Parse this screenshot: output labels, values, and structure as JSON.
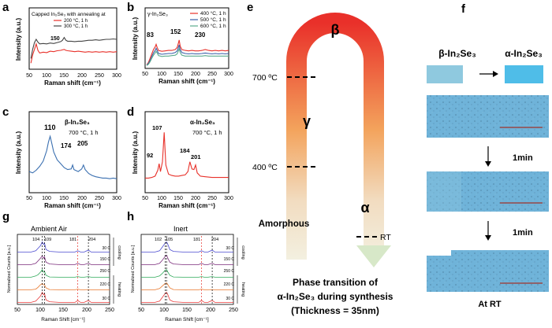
{
  "panels": {
    "a": {
      "letter": "a",
      "title": "Capped In₂Se₃ with annealing at",
      "ylabel": "Intensity (a.u.)",
      "xlabel": "Raman shift (cm⁻¹)",
      "ticks": [
        "50",
        "100",
        "150",
        "200",
        "250",
        "300"
      ],
      "peak": "150",
      "legend": [
        "200 °C, 1 h",
        "300 °C, 1 h"
      ],
      "colors": [
        "#e8312a",
        "#444444"
      ]
    },
    "b": {
      "letter": "b",
      "phase": "γ-In₂Se₃",
      "ylabel": "Intensity (a.u.)",
      "xlabel": "Raman shift (cm⁻¹)",
      "ticks": [
        "50",
        "100",
        "150",
        "200",
        "250",
        "300"
      ],
      "peaks": [
        "83",
        "152",
        "230"
      ],
      "legend": [
        "400 °C, 1 h",
        "500 °C, 1 h",
        "600 °C, 1 h"
      ],
      "colors": [
        "#e8312a",
        "#3a5fa8",
        "#5aab8c"
      ]
    },
    "c": {
      "letter": "c",
      "phase": "β-In₂Se₃",
      "cond": "700 °C, 1 h",
      "ylabel": "Intensity (a.u.)",
      "xlabel": "Raman shift (cm⁻¹)",
      "ticks": [
        "50",
        "100",
        "150",
        "200",
        "250",
        "300"
      ],
      "peaks": [
        "110",
        "174",
        "205"
      ],
      "color": "#3a6fb0"
    },
    "d": {
      "letter": "d",
      "phase": "α-In₂Se₃",
      "cond": "700 °C, 1 h",
      "ylabel": "Intensity (a.u.)",
      "xlabel": "Raman shift (cm⁻¹)",
      "ticks": [
        "50",
        "100",
        "150",
        "200",
        "250",
        "300"
      ],
      "peaks": [
        "92",
        "107",
        "184",
        "201"
      ],
      "color": "#e8312a"
    },
    "e": {
      "letter": "e",
      "beta": "β",
      "gamma": "γ",
      "alpha": "α",
      "amorphous": "Amorphous",
      "t700": "700 ºC",
      "t400": "400 ºC",
      "rt": "RT",
      "caption_line1": "Phase transition of",
      "caption_line2": "α-In₂Se₃ during synthesis",
      "caption_line3": "(Thickness = 35nm)"
    },
    "f": {
      "letter": "f",
      "beta_label": "β-In₂Se₃",
      "alpha_label": "α-In₂Se₃",
      "beta_color": "#8fc9df",
      "alpha_color": "#4fbde8",
      "step1": "1min",
      "step2": "1min",
      "end": "At RT"
    },
    "g": {
      "letter": "g",
      "title": "Ambient Air",
      "ylabel": "Normalized Counts [a.u.]",
      "xlabel": "Raman Shift [cm⁻¹]",
      "ticks": [
        "50",
        "100",
        "150",
        "200",
        "250"
      ],
      "peaks": [
        "104",
        "109",
        "181",
        "204"
      ],
      "temps": [
        "30 C",
        "150 C",
        "250 C",
        "220 C",
        "30 C"
      ],
      "cooling": "cooling",
      "heating": "heating",
      "colors": [
        "#4a4ad0",
        "#7a2a7a",
        "#2faa5a",
        "#e8762a",
        "#e83a3a"
      ]
    },
    "h": {
      "letter": "h",
      "title": "Inert",
      "ylabel": "Normalized Counts [a.u.]",
      "xlabel": "Raman Shift [cm⁻¹]",
      "ticks": [
        "50",
        "100",
        "150",
        "200",
        "250"
      ],
      "peaks": [
        "102",
        "105",
        "181",
        "204"
      ],
      "temps": [
        "30 C",
        "150 C",
        "250 C",
        "220 C",
        "30 C"
      ],
      "cooling": "cooling",
      "heating": "heating",
      "colors": [
        "#4a4ad0",
        "#7a2a7a",
        "#2faa5a",
        "#e8762a",
        "#e83a3a"
      ]
    }
  },
  "chart_data": [
    {
      "type": "line",
      "panel": "a",
      "title": "Capped In₂Se₃ with annealing at",
      "xlabel": "Raman shift (cm⁻¹)",
      "ylabel": "Intensity (a.u.)",
      "xlim": [
        50,
        300
      ],
      "ylim": [
        0,
        1
      ],
      "x": [
        55,
        60,
        65,
        70,
        75,
        80,
        90,
        100,
        110,
        120,
        130,
        140,
        145,
        150,
        155,
        160,
        170,
        180,
        190,
        200,
        210,
        220,
        230,
        240,
        250,
        260,
        270,
        280,
        290,
        300
      ],
      "series": [
        {
          "name": "200 °C, 1 h",
          "values": [
            0.1,
            0.28,
            0.4,
            0.52,
            0.38,
            0.32,
            0.34,
            0.33,
            0.36,
            0.35,
            0.37,
            0.38,
            0.39,
            0.4,
            0.38,
            0.37,
            0.36,
            0.35,
            0.36,
            0.35,
            0.34,
            0.35,
            0.34,
            0.35,
            0.34,
            0.35,
            0.34,
            0.35,
            0.34,
            0.35
          ]
        },
        {
          "name": "300 °C, 1 h",
          "values": [
            0.2,
            0.4,
            0.55,
            0.62,
            0.56,
            0.52,
            0.53,
            0.52,
            0.54,
            0.53,
            0.55,
            0.57,
            0.6,
            0.66,
            0.6,
            0.58,
            0.58,
            0.57,
            0.58,
            0.58,
            0.59,
            0.6,
            0.6,
            0.61,
            0.6,
            0.61,
            0.62,
            0.62,
            0.63,
            0.62
          ]
        }
      ]
    },
    {
      "type": "line",
      "panel": "b",
      "title": "γ-In₂Se₃",
      "xlabel": "Raman shift (cm⁻¹)",
      "ylabel": "Intensity (a.u.)",
      "xlim": [
        50,
        300
      ],
      "ylim": [
        0,
        1
      ],
      "x": [
        55,
        60,
        65,
        70,
        75,
        80,
        83,
        86,
        90,
        100,
        110,
        120,
        130,
        140,
        146,
        150,
        152,
        155,
        160,
        170,
        180,
        190,
        200,
        210,
        220,
        230,
        240,
        250,
        260,
        270,
        280,
        290,
        300
      ],
      "series": [
        {
          "name": "400 °C, 1 h",
          "values": [
            0.05,
            0.1,
            0.2,
            0.3,
            0.4,
            0.46,
            0.52,
            0.45,
            0.38,
            0.36,
            0.37,
            0.38,
            0.38,
            0.4,
            0.45,
            0.56,
            0.62,
            0.48,
            0.4,
            0.38,
            0.37,
            0.38,
            0.37,
            0.37,
            0.38,
            0.4,
            0.38,
            0.37,
            0.38,
            0.37,
            0.38,
            0.37,
            0.38
          ]
        },
        {
          "name": "500 °C, 1 h",
          "values": [
            0.04,
            0.08,
            0.15,
            0.24,
            0.32,
            0.38,
            0.43,
            0.38,
            0.31,
            0.29,
            0.3,
            0.31,
            0.31,
            0.33,
            0.37,
            0.46,
            0.51,
            0.4,
            0.33,
            0.31,
            0.3,
            0.31,
            0.3,
            0.3,
            0.31,
            0.32,
            0.31,
            0.3,
            0.31,
            0.3,
            0.31,
            0.3,
            0.31
          ]
        },
        {
          "name": "600 °C, 1 h",
          "values": [
            0.03,
            0.06,
            0.12,
            0.2,
            0.27,
            0.32,
            0.36,
            0.32,
            0.26,
            0.24,
            0.25,
            0.25,
            0.26,
            0.27,
            0.3,
            0.38,
            0.42,
            0.33,
            0.27,
            0.25,
            0.25,
            0.25,
            0.25,
            0.25,
            0.25,
            0.26,
            0.25,
            0.25,
            0.25,
            0.25,
            0.25,
            0.25,
            0.25
          ]
        }
      ]
    },
    {
      "type": "line",
      "panel": "c",
      "title": "β-In₂Se₃",
      "xlabel": "Raman shift (cm⁻¹)",
      "ylabel": "Intensity (a.u.)",
      "xlim": [
        50,
        300
      ],
      "ylim": [
        0,
        1
      ],
      "x": [
        50,
        60,
        70,
        80,
        90,
        100,
        105,
        110,
        115,
        120,
        130,
        140,
        150,
        160,
        170,
        174,
        178,
        190,
        200,
        205,
        210,
        220,
        230,
        240,
        250,
        260,
        270,
        280,
        290,
        300
      ],
      "series": [
        {
          "name": "700 °C, 1 h",
          "values": [
            0.3,
            0.28,
            0.32,
            0.38,
            0.46,
            0.62,
            0.75,
            0.84,
            0.72,
            0.6,
            0.48,
            0.42,
            0.36,
            0.33,
            0.34,
            0.4,
            0.33,
            0.3,
            0.34,
            0.4,
            0.33,
            0.27,
            0.24,
            0.22,
            0.21,
            0.2,
            0.2,
            0.19,
            0.2,
            0.19
          ]
        }
      ]
    },
    {
      "type": "line",
      "panel": "d",
      "title": "α-In₂Se₃",
      "xlabel": "Raman shift (cm⁻¹)",
      "ylabel": "Intensity (a.u.)",
      "xlim": [
        50,
        300
      ],
      "ylim": [
        0,
        1
      ],
      "x": [
        50,
        60,
        70,
        80,
        88,
        92,
        96,
        102,
        107,
        112,
        120,
        130,
        140,
        150,
        160,
        170,
        178,
        184,
        190,
        196,
        201,
        206,
        215,
        230,
        250,
        270,
        290,
        300
      ],
      "series": [
        {
          "name": "700 °C, 1 h",
          "values": [
            0.2,
            0.2,
            0.21,
            0.23,
            0.32,
            0.42,
            0.3,
            0.45,
            0.9,
            0.4,
            0.26,
            0.24,
            0.23,
            0.23,
            0.24,
            0.25,
            0.3,
            0.45,
            0.34,
            0.33,
            0.4,
            0.28,
            0.23,
            0.22,
            0.21,
            0.21,
            0.21,
            0.21
          ]
        }
      ]
    },
    {
      "type": "line",
      "panel": "g",
      "title": "Ambient Air",
      "xlabel": "Raman Shift [cm⁻¹]",
      "ylabel": "Normalized Counts [a.u.]",
      "xlim": [
        50,
        250
      ],
      "x": [
        50,
        60,
        70,
        80,
        90,
        95,
        100,
        104,
        107,
        109,
        112,
        120,
        140,
        160,
        175,
        181,
        187,
        195,
        204,
        210,
        230,
        250
      ],
      "series": [
        {
          "name": "30 C",
          "values": [
            0.1,
            0.1,
            0.1,
            0.1,
            0.2,
            0.4,
            0.6,
            0.9,
            0.7,
            0.8,
            0.3,
            0.15,
            0.1,
            0.1,
            0.1,
            0.2,
            0.1,
            0.1,
            0.25,
            0.1,
            0.1,
            0.1
          ]
        },
        {
          "name": "150 C",
          "values": [
            0.1,
            0.1,
            0.1,
            0.1,
            0.2,
            0.4,
            0.6,
            0.8,
            0.6,
            0.7,
            0.3,
            0.15,
            0.1,
            0.1,
            0.1,
            0.2,
            0.1,
            0.1,
            0.2,
            0.1,
            0.1,
            0.1
          ]
        },
        {
          "name": "250 C",
          "values": [
            0.1,
            0.1,
            0.1,
            0.1,
            0.2,
            0.3,
            0.5,
            0.7,
            0.5,
            0.55,
            0.25,
            0.12,
            0.1,
            0.1,
            0.1,
            0.15,
            0.1,
            0.1,
            0.15,
            0.1,
            0.1,
            0.1
          ]
        },
        {
          "name": "220 C",
          "values": [
            0.1,
            0.1,
            0.1,
            0.1,
            0.15,
            0.3,
            0.5,
            0.6,
            0.5,
            0.5,
            0.25,
            0.12,
            0.1,
            0.1,
            0.1,
            0.15,
            0.1,
            0.1,
            0.12,
            0.1,
            0.1,
            0.1
          ]
        },
        {
          "name": "30 C",
          "values": [
            0.1,
            0.1,
            0.1,
            0.1,
            0.2,
            0.4,
            0.6,
            0.9,
            0.7,
            0.8,
            0.3,
            0.15,
            0.1,
            0.1,
            0.1,
            0.25,
            0.1,
            0.1,
            0.25,
            0.1,
            0.1,
            0.1
          ]
        }
      ]
    },
    {
      "type": "line",
      "panel": "h",
      "title": "Inert",
      "xlabel": "Raman Shift [cm⁻¹]",
      "ylabel": "Normalized Counts [a.u.]",
      "xlim": [
        50,
        250
      ],
      "x": [
        50,
        60,
        70,
        80,
        90,
        96,
        102,
        105,
        108,
        112,
        120,
        140,
        160,
        175,
        181,
        187,
        195,
        204,
        210,
        230,
        250
      ],
      "series": [
        {
          "name": "30 C",
          "values": [
            0.1,
            0.1,
            0.1,
            0.1,
            0.2,
            0.5,
            0.8,
            0.9,
            0.7,
            0.3,
            0.15,
            0.1,
            0.1,
            0.1,
            0.2,
            0.1,
            0.1,
            0.25,
            0.1,
            0.1,
            0.1
          ]
        },
        {
          "name": "150 C",
          "values": [
            0.1,
            0.1,
            0.1,
            0.1,
            0.2,
            0.45,
            0.75,
            0.85,
            0.6,
            0.3,
            0.15,
            0.1,
            0.1,
            0.1,
            0.2,
            0.1,
            0.1,
            0.2,
            0.1,
            0.1,
            0.1
          ]
        },
        {
          "name": "250 C",
          "values": [
            0.1,
            0.1,
            0.1,
            0.1,
            0.2,
            0.4,
            0.65,
            0.7,
            0.5,
            0.25,
            0.12,
            0.1,
            0.1,
            0.1,
            0.15,
            0.1,
            0.1,
            0.15,
            0.1,
            0.1,
            0.1
          ]
        },
        {
          "name": "220 C",
          "values": [
            0.1,
            0.1,
            0.1,
            0.1,
            0.2,
            0.4,
            0.6,
            0.65,
            0.5,
            0.25,
            0.12,
            0.1,
            0.1,
            0.1,
            0.15,
            0.1,
            0.1,
            0.12,
            0.1,
            0.1,
            0.1
          ]
        },
        {
          "name": "30 C",
          "values": [
            0.1,
            0.1,
            0.1,
            0.1,
            0.2,
            0.5,
            0.8,
            0.9,
            0.7,
            0.3,
            0.15,
            0.1,
            0.1,
            0.1,
            0.25,
            0.1,
            0.1,
            0.25,
            0.1,
            0.1,
            0.1
          ]
        }
      ]
    }
  ]
}
